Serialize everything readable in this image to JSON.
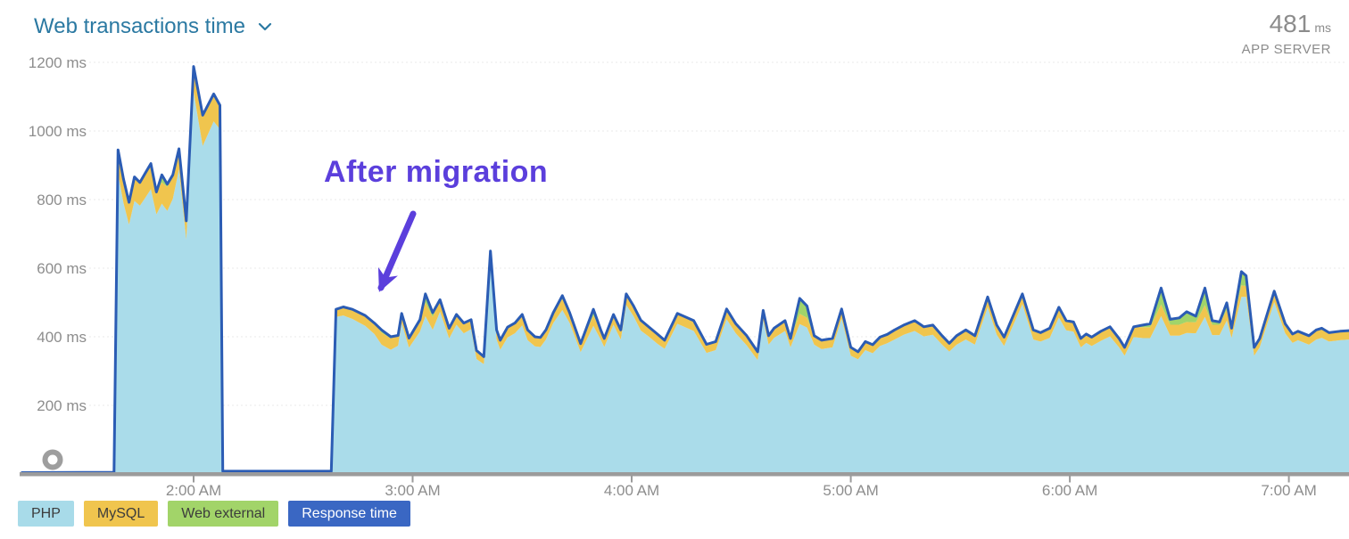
{
  "header": {
    "title": "Web transactions time",
    "value": "481",
    "value_unit": "ms",
    "value_label": "APP SERVER",
    "title_color": "#2b79a2"
  },
  "annotation": {
    "text": "After migration",
    "color": "#5b3fdc"
  },
  "legend": [
    {
      "label": "PHP",
      "color": "#a8dbe9",
      "text_color": "#3c3c3c"
    },
    {
      "label": "MySQL",
      "color": "#f0c54e",
      "text_color": "#3c3c3c"
    },
    {
      "label": "Web external",
      "color": "#a2d469",
      "text_color": "#3c3c3c"
    },
    {
      "label": "Response time",
      "color": "#3a67c3",
      "text_color": "#ffffff"
    }
  ],
  "chart_data": {
    "type": "area",
    "stacked": true,
    "title": "Web transactions time",
    "unit": "ms",
    "grid": true,
    "legend_position": "bottom",
    "y_axis": {
      "range": [
        0,
        1250
      ],
      "ticks": [
        200,
        400,
        600,
        800,
        1000,
        1200
      ],
      "tick_labels": [
        "200 ms",
        "400 ms",
        "600 ms",
        "800 ms",
        "1000 ms",
        "1200 ms"
      ]
    },
    "x_axis": {
      "range_minutes": [
        73,
        436.5
      ],
      "ticks_minutes": [
        120,
        180,
        240,
        300,
        360,
        420
      ],
      "tick_labels": [
        "2:00 AM",
        "3:00 AM",
        "4:00 AM",
        "5:00 AM",
        "6:00 AM",
        "7:00 AM"
      ]
    },
    "series": [
      {
        "name": "PHP",
        "type": "area",
        "color": "#aadcea",
        "column": "php"
      },
      {
        "name": "MySQL",
        "type": "area",
        "color": "#f0c54e",
        "column": "mysql"
      },
      {
        "name": "Web external",
        "type": "area",
        "color": "#a0d46a",
        "column": "web_external"
      },
      {
        "name": "Response time",
        "type": "line",
        "color": "#2b5cb4",
        "column": "response_time"
      }
    ],
    "columns": [
      "minutes_after_midnight",
      "php",
      "mysql",
      "web_external",
      "response_time"
    ],
    "points": [
      [
        73,
        2,
        1,
        0,
        4
      ],
      [
        98.2,
        2,
        1,
        0,
        5
      ],
      [
        99.3,
        875,
        70,
        0,
        945
      ],
      [
        100.8,
        790,
        70,
        0,
        860
      ],
      [
        102.3,
        727,
        65,
        0,
        792
      ],
      [
        103.8,
        796,
        70,
        0,
        866
      ],
      [
        105.3,
        782,
        68,
        0,
        850
      ],
      [
        106.8,
        806,
        72,
        0,
        878
      ],
      [
        108.3,
        830,
        75,
        0,
        905
      ],
      [
        109.8,
        757,
        65,
        0,
        822
      ],
      [
        111.3,
        788,
        62,
        22,
        872
      ],
      [
        112.8,
        767,
        70,
        8,
        845
      ],
      [
        114.3,
        802,
        70,
        0,
        872
      ],
      [
        116,
        888,
        60,
        0,
        948
      ],
      [
        118,
        683,
        55,
        0,
        738
      ],
      [
        120,
        1113,
        75,
        0,
        1188
      ],
      [
        122.5,
        956,
        90,
        0,
        1046
      ],
      [
        125.5,
        1028,
        80,
        0,
        1108
      ],
      [
        127.2,
        1005,
        70,
        0,
        1075
      ],
      [
        128,
        5,
        2,
        0,
        8
      ],
      [
        157.7,
        5,
        2,
        0,
        8
      ],
      [
        159,
        458,
        22,
        0,
        480
      ],
      [
        161,
        462,
        25,
        0,
        487
      ],
      [
        163.5,
        452,
        28,
        0,
        480
      ],
      [
        167,
        432,
        30,
        0,
        462
      ],
      [
        169.5,
        408,
        32,
        0,
        440
      ],
      [
        171.5,
        377,
        35,
        8,
        420
      ],
      [
        174,
        362,
        33,
        5,
        400
      ],
      [
        176,
        374,
        30,
        0,
        404
      ],
      [
        177,
        440,
        28,
        0,
        468
      ],
      [
        179,
        368,
        28,
        0,
        396
      ],
      [
        182,
        415,
        35,
        0,
        450
      ],
      [
        183.5,
        460,
        40,
        25,
        525
      ],
      [
        185.5,
        420,
        38,
        12,
        470
      ],
      [
        187.5,
        473,
        35,
        0,
        508
      ],
      [
        190,
        395,
        30,
        0,
        425
      ],
      [
        192,
        435,
        30,
        0,
        465
      ],
      [
        194,
        410,
        30,
        0,
        440
      ],
      [
        196,
        422,
        28,
        0,
        450
      ],
      [
        197.5,
        335,
        25,
        0,
        360
      ],
      [
        199.5,
        320,
        22,
        0,
        342
      ],
      [
        201.3,
        625,
        25,
        0,
        650
      ],
      [
        203,
        392,
        28,
        0,
        420
      ],
      [
        204,
        362,
        28,
        0,
        390
      ],
      [
        206,
        398,
        30,
        0,
        428
      ],
      [
        208,
        410,
        30,
        0,
        440
      ],
      [
        210,
        433,
        32,
        0,
        465
      ],
      [
        211.5,
        390,
        30,
        0,
        420
      ],
      [
        213.5,
        372,
        28,
        0,
        400
      ],
      [
        215,
        370,
        28,
        0,
        398
      ],
      [
        216.5,
        392,
        28,
        0,
        420
      ],
      [
        218.5,
        440,
        30,
        0,
        470
      ],
      [
        221,
        478,
        32,
        10,
        520
      ],
      [
        223,
        440,
        30,
        0,
        470
      ],
      [
        226,
        355,
        25,
        0,
        380
      ],
      [
        229.5,
        432,
        30,
        18,
        480
      ],
      [
        231.5,
        392,
        28,
        0,
        420
      ],
      [
        232.5,
        370,
        25,
        0,
        395
      ],
      [
        235,
        435,
        30,
        0,
        465
      ],
      [
        237,
        392,
        28,
        0,
        420
      ],
      [
        238.5,
        493,
        32,
        0,
        525
      ],
      [
        240.5,
        460,
        30,
        0,
        490
      ],
      [
        242.5,
        418,
        30,
        0,
        448
      ],
      [
        244.5,
        402,
        28,
        0,
        430
      ],
      [
        247,
        380,
        28,
        0,
        408
      ],
      [
        249,
        365,
        25,
        0,
        390
      ],
      [
        252.5,
        438,
        30,
        0,
        468
      ],
      [
        257,
        417,
        30,
        0,
        447
      ],
      [
        260.5,
        353,
        25,
        0,
        378
      ],
      [
        263,
        361,
        25,
        0,
        386
      ],
      [
        266,
        451,
        30,
        0,
        481
      ],
      [
        268.5,
        410,
        28,
        0,
        438
      ],
      [
        271.5,
        375,
        28,
        0,
        403
      ],
      [
        274.5,
        332,
        24,
        0,
        356
      ],
      [
        276,
        449,
        28,
        0,
        477
      ],
      [
        277.5,
        377,
        26,
        0,
        403
      ],
      [
        279,
        397,
        28,
        0,
        425
      ],
      [
        282,
        417,
        30,
        0,
        447
      ],
      [
        283.5,
        369,
        26,
        0,
        395
      ],
      [
        286,
        437,
        30,
        45,
        512
      ],
      [
        288,
        427,
        28,
        35,
        490
      ],
      [
        290,
        377,
        26,
        0,
        403
      ],
      [
        292,
        364,
        26,
        0,
        390
      ],
      [
        295,
        369,
        26,
        0,
        395
      ],
      [
        297.5,
        453,
        28,
        0,
        481
      ],
      [
        300,
        345,
        24,
        0,
        369
      ],
      [
        302,
        334,
        22,
        0,
        356
      ],
      [
        304,
        361,
        25,
        0,
        386
      ],
      [
        306,
        352,
        25,
        0,
        377
      ],
      [
        308,
        373,
        26,
        0,
        399
      ],
      [
        310,
        381,
        26,
        0,
        407
      ],
      [
        312,
        392,
        28,
        0,
        420
      ],
      [
        314.5,
        406,
        28,
        0,
        434
      ],
      [
        317.5,
        417,
        30,
        0,
        447
      ],
      [
        320,
        401,
        28,
        0,
        429
      ],
      [
        322.5,
        406,
        28,
        0,
        434
      ],
      [
        325,
        377,
        26,
        0,
        403
      ],
      [
        327,
        357,
        24,
        0,
        381
      ],
      [
        329,
        377,
        26,
        0,
        403
      ],
      [
        331.5,
        392,
        28,
        0,
        420
      ],
      [
        334,
        377,
        26,
        0,
        403
      ],
      [
        337.5,
        486,
        30,
        0,
        516
      ],
      [
        340,
        406,
        28,
        0,
        434
      ],
      [
        342,
        373,
        26,
        0,
        399
      ],
      [
        347,
        495,
        30,
        0,
        525
      ],
      [
        350,
        392,
        28,
        0,
        420
      ],
      [
        352,
        386,
        26,
        0,
        412
      ],
      [
        354.5,
        397,
        28,
        0,
        425
      ],
      [
        357,
        456,
        30,
        0,
        486
      ],
      [
        359,
        419,
        28,
        0,
        447
      ],
      [
        361,
        415,
        28,
        0,
        443
      ],
      [
        363,
        369,
        26,
        0,
        395
      ],
      [
        364.5,
        382,
        26,
        0,
        408
      ],
      [
        366,
        373,
        26,
        0,
        399
      ],
      [
        368.5,
        388,
        28,
        0,
        416
      ],
      [
        371,
        401,
        28,
        0,
        429
      ],
      [
        373.5,
        369,
        26,
        0,
        395
      ],
      [
        375,
        345,
        24,
        0,
        369
      ],
      [
        377.5,
        399,
        30,
        0,
        429
      ],
      [
        380,
        396,
        32,
        6,
        434
      ],
      [
        382,
        396,
        32,
        10,
        438
      ],
      [
        385,
        460,
        34,
        48,
        542
      ],
      [
        387.5,
        403,
        32,
        16,
        451
      ],
      [
        390,
        403,
        32,
        20,
        455
      ],
      [
        392,
        411,
        32,
        30,
        473
      ],
      [
        394.5,
        410,
        32,
        18,
        460
      ],
      [
        397,
        458,
        34,
        50,
        542
      ],
      [
        399,
        405,
        30,
        12,
        447
      ],
      [
        401,
        405,
        30,
        8,
        443
      ],
      [
        403,
        447,
        32,
        20,
        499
      ],
      [
        404.3,
        397,
        28,
        0,
        425
      ],
      [
        407,
        516,
        34,
        40,
        590
      ],
      [
        408.3,
        516,
        32,
        30,
        578
      ],
      [
        410.5,
        345,
        24,
        0,
        369
      ],
      [
        412,
        369,
        26,
        0,
        395
      ],
      [
        416,
        501,
        32,
        0,
        533
      ],
      [
        419,
        410,
        28,
        0,
        438
      ],
      [
        421,
        382,
        26,
        0,
        408
      ],
      [
        422.5,
        390,
        26,
        0,
        416
      ],
      [
        425.5,
        377,
        26,
        0,
        403
      ],
      [
        427.5,
        392,
        28,
        0,
        420
      ],
      [
        429,
        397,
        28,
        0,
        425
      ],
      [
        431,
        386,
        26,
        0,
        412
      ],
      [
        434,
        390,
        26,
        0,
        416
      ],
      [
        436.5,
        392,
        26,
        0,
        418
      ]
    ]
  }
}
